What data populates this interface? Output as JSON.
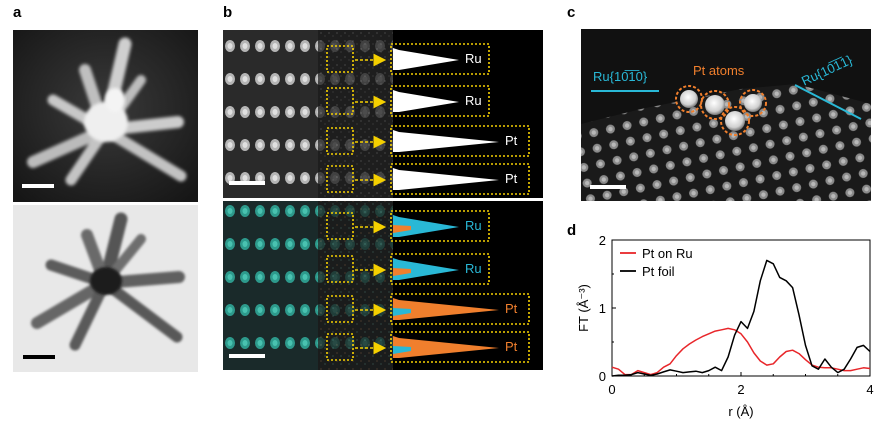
{
  "panels": {
    "a": {
      "label": "a"
    },
    "b": {
      "label": "b",
      "top_species": [
        "Ru",
        "Ru",
        "Pt",
        "Pt"
      ],
      "bottom_species": [
        "Ru",
        "Ru",
        "Pt",
        "Pt"
      ],
      "colors": {
        "Ru": "#29b8d6",
        "Pt": "#f07f2d",
        "white": "#ffffff",
        "box": "#f5d000"
      }
    },
    "c": {
      "label": "c",
      "left_facet": "Ru{10̅1̅0}",
      "right_facet": "Ru{10̅1̅1}",
      "atoms_label": "Pt atoms"
    },
    "d": {
      "label": "d"
    }
  },
  "chart_data": {
    "type": "line",
    "xlabel": "r (Å)",
    "ylabel": "FT (Å⁻³)",
    "xlim": [
      0,
      4
    ],
    "ylim": [
      0,
      2
    ],
    "xticks": [
      "0",
      "2",
      "4"
    ],
    "yticks": [
      "0",
      "1",
      "2"
    ],
    "legend_position": "top-left",
    "series": [
      {
        "name": "Pt on Ru",
        "color": "#e8262a",
        "x": [
          0,
          0.1,
          0.2,
          0.3,
          0.4,
          0.5,
          0.6,
          0.7,
          0.8,
          0.9,
          1.0,
          1.1,
          1.2,
          1.3,
          1.4,
          1.5,
          1.6,
          1.7,
          1.8,
          1.9,
          2.0,
          2.1,
          2.2,
          2.3,
          2.4,
          2.5,
          2.6,
          2.7,
          2.8,
          2.9,
          3.0,
          3.1,
          3.2,
          3.3,
          3.4,
          3.5,
          3.6,
          3.7,
          3.8,
          3.9,
          4.0
        ],
        "y": [
          0.13,
          0.1,
          0.02,
          0.02,
          0.08,
          0.05,
          0.02,
          0.05,
          0.13,
          0.18,
          0.3,
          0.4,
          0.47,
          0.53,
          0.58,
          0.62,
          0.66,
          0.68,
          0.7,
          0.68,
          0.62,
          0.5,
          0.34,
          0.22,
          0.16,
          0.18,
          0.28,
          0.36,
          0.38,
          0.33,
          0.24,
          0.16,
          0.13,
          0.12,
          0.12,
          0.1,
          0.08,
          0.08,
          0.1,
          0.12,
          0.11
        ]
      },
      {
        "name": "Pt foil",
        "color": "#000000",
        "x": [
          0,
          0.1,
          0.2,
          0.3,
          0.4,
          0.5,
          0.6,
          0.7,
          0.8,
          0.9,
          1.0,
          1.1,
          1.2,
          1.3,
          1.4,
          1.5,
          1.6,
          1.7,
          1.8,
          1.9,
          2.0,
          2.1,
          2.2,
          2.3,
          2.4,
          2.5,
          2.6,
          2.7,
          2.8,
          2.9,
          3.0,
          3.1,
          3.2,
          3.3,
          3.4,
          3.5,
          3.6,
          3.7,
          3.8,
          3.9,
          4.0
        ],
        "y": [
          0.0,
          0.01,
          0.01,
          0.02,
          0.05,
          0.03,
          0.01,
          0.03,
          0.06,
          0.09,
          0.07,
          0.05,
          0.06,
          0.07,
          0.05,
          0.08,
          0.13,
          0.08,
          0.28,
          0.6,
          0.8,
          0.7,
          0.95,
          1.4,
          1.7,
          1.65,
          1.45,
          1.4,
          1.3,
          0.9,
          0.45,
          0.15,
          0.1,
          0.25,
          0.13,
          0.05,
          0.1,
          0.25,
          0.42,
          0.45,
          0.36
        ]
      }
    ]
  }
}
